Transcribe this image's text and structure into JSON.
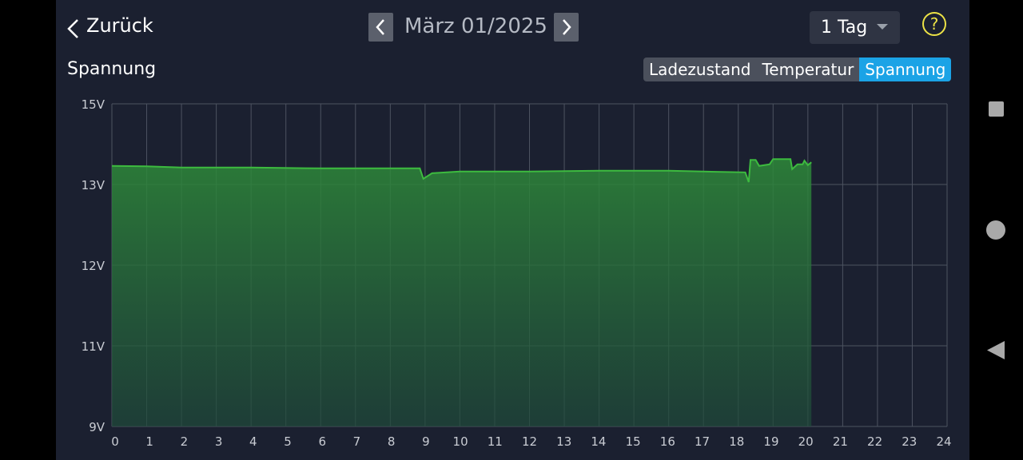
{
  "header": {
    "back": "Zurück",
    "date": "März 01/2025",
    "range": "1 Tag",
    "help": "?"
  },
  "tabs": [
    "Ladezustand",
    "Temperatur",
    "Spannung"
  ],
  "chart_data": {
    "type": "area",
    "title": "Spannung",
    "color": "#3dbb3f",
    "grid": true,
    "xlim": [
      0,
      24
    ],
    "xticks": [
      0,
      1,
      2,
      3,
      4,
      5,
      6,
      7,
      8,
      9,
      10,
      11,
      12,
      13,
      14,
      15,
      16,
      17,
      18,
      19,
      20,
      21,
      22,
      23,
      24
    ],
    "ylim": [
      9,
      15
    ],
    "yticks": [
      {
        "value": 9,
        "label": "9V"
      },
      {
        "value": 11,
        "label": "11V"
      },
      {
        "value": 12,
        "label": "12V"
      },
      {
        "value": 13,
        "label": "13V"
      },
      {
        "value": 15,
        "label": "15V"
      }
    ],
    "x": [
      0,
      1,
      2,
      4,
      6,
      8,
      8.85,
      8.95,
      9.2,
      10,
      12,
      14,
      16,
      17,
      18.2,
      18.3,
      18.35,
      18.5,
      18.6,
      18.9,
      19.0,
      19.5,
      19.55,
      19.7,
      19.85,
      19.9,
      20.0,
      20.1
    ],
    "values": [
      13.46,
      13.45,
      13.42,
      13.42,
      13.4,
      13.4,
      13.4,
      13.14,
      13.28,
      13.32,
      13.32,
      13.34,
      13.34,
      13.32,
      13.3,
      13.06,
      13.61,
      13.61,
      13.46,
      13.5,
      13.63,
      13.63,
      13.38,
      13.5,
      13.5,
      13.59,
      13.48,
      13.55
    ]
  }
}
